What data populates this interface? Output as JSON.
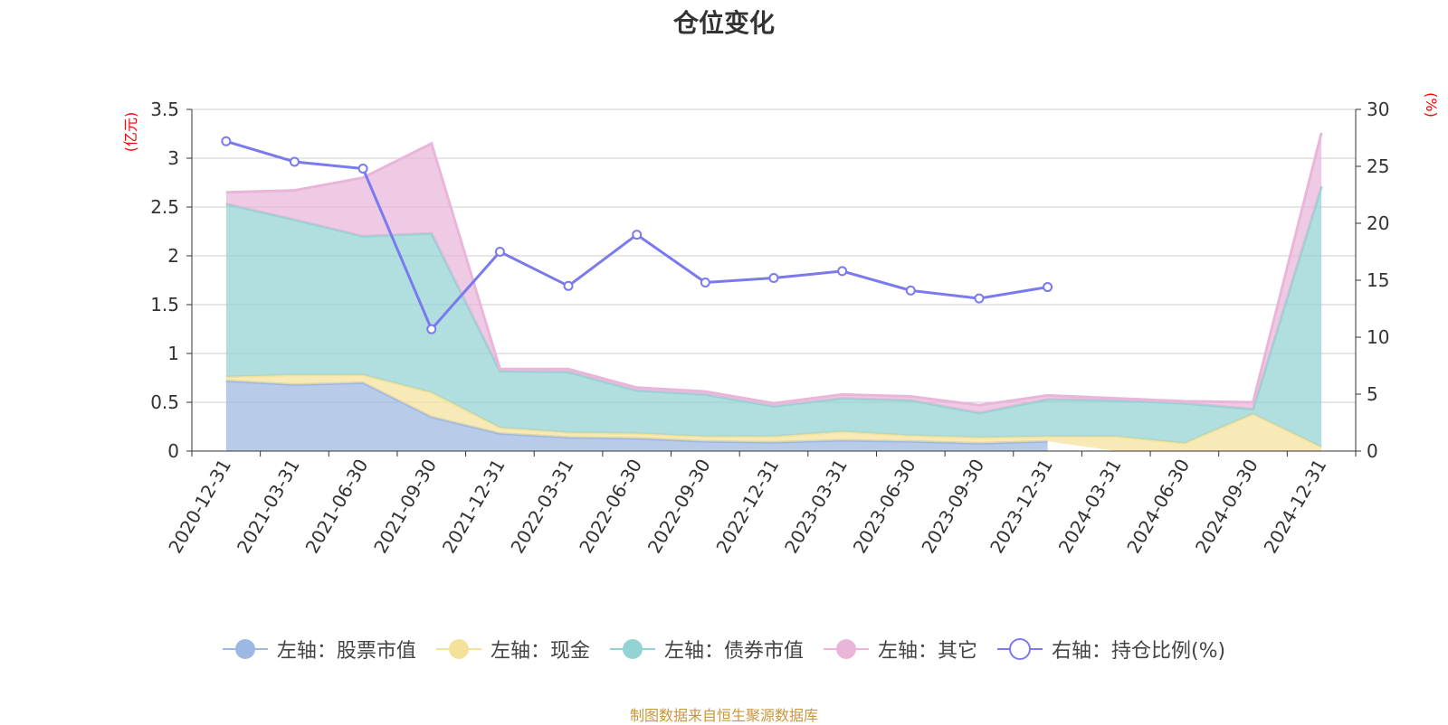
{
  "chart_data": {
    "type": "area",
    "title": "仓位变化",
    "left_unit": "(亿元)",
    "right_unit": "(%)",
    "categories": [
      "2020-12-31",
      "2021-03-31",
      "2021-06-30",
      "2021-09-30",
      "2021-12-31",
      "2022-03-31",
      "2022-06-30",
      "2022-09-30",
      "2022-12-31",
      "2023-03-31",
      "2023-06-30",
      "2023-09-30",
      "2023-12-31",
      "2024-03-31",
      "2024-06-30",
      "2024-09-30",
      "2024-12-31"
    ],
    "left_axis": {
      "min": 0,
      "max": 3.5,
      "ticks": [
        "0",
        "0.5",
        "1",
        "1.5",
        "2",
        "2.5",
        "3",
        "3.5"
      ]
    },
    "right_axis": {
      "min": 0,
      "max": 30,
      "ticks": [
        "0",
        "5",
        "10",
        "15",
        "20",
        "25",
        "30"
      ]
    },
    "series": [
      {
        "name": "左轴：股票市值",
        "axis": "left",
        "stacked": true,
        "color": "#9db8e2",
        "values": [
          0.72,
          0.68,
          0.7,
          0.35,
          0.18,
          0.14,
          0.13,
          0.1,
          0.09,
          0.11,
          0.1,
          0.08,
          0.1,
          null,
          null,
          null,
          null
        ]
      },
      {
        "name": "左轴：现金",
        "axis": "left",
        "stacked": true,
        "color": "#f5e29a",
        "values": [
          0.04,
          0.1,
          0.08,
          0.25,
          0.06,
          0.05,
          0.05,
          0.05,
          0.06,
          0.09,
          0.06,
          0.06,
          0.05,
          0.15,
          0.08,
          0.38,
          0.04
        ]
      },
      {
        "name": "左轴：债券市值",
        "axis": "left",
        "stacked": true,
        "color": "#93d3d3",
        "values": [
          1.77,
          1.59,
          1.42,
          1.63,
          0.58,
          0.62,
          0.44,
          0.43,
          0.31,
          0.34,
          0.36,
          0.25,
          0.38,
          0.37,
          0.41,
          0.05,
          2.67
        ]
      },
      {
        "name": "左轴：其它",
        "axis": "left",
        "stacked": true,
        "color": "#e9b6da",
        "values": [
          0.12,
          0.3,
          0.6,
          0.92,
          0.02,
          0.03,
          0.03,
          0.03,
          0.03,
          0.04,
          0.04,
          0.08,
          0.04,
          0.02,
          0.02,
          0.07,
          0.55
        ]
      },
      {
        "name": "右轴：持仓比例(%)",
        "axis": "right",
        "stacked": false,
        "color": "#7a7aee",
        "values": [
          27.2,
          25.4,
          24.8,
          10.7,
          17.5,
          14.5,
          19.0,
          14.8,
          15.2,
          15.8,
          14.1,
          13.4,
          14.4,
          null,
          null,
          null,
          null
        ]
      }
    ]
  },
  "source_text": "制图数据来自恒生聚源数据库"
}
